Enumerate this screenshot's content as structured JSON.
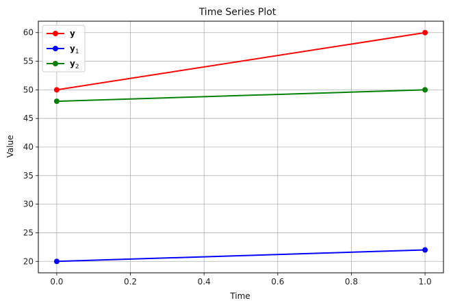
{
  "chart_data": {
    "type": "line",
    "title": "Time Series Plot",
    "xlabel": "Time",
    "ylabel": "Value",
    "xlim": [
      -0.05,
      1.05
    ],
    "ylim": [
      18,
      62
    ],
    "xticks": [
      0.0,
      0.2,
      0.4,
      0.6,
      0.8,
      1.0
    ],
    "xtick_labels": [
      "0.0",
      "0.2",
      "0.4",
      "0.6",
      "0.8",
      "1.0"
    ],
    "yticks": [
      20,
      25,
      30,
      35,
      40,
      45,
      50,
      55,
      60
    ],
    "ytick_labels": [
      "20",
      "25",
      "30",
      "35",
      "40",
      "45",
      "50",
      "55",
      "60"
    ],
    "grid": true,
    "legend_position": "top-left",
    "x": [
      0.0,
      1.0
    ],
    "series": [
      {
        "name": "y",
        "base": "y",
        "sub": "",
        "color": "#ff0000",
        "values": [
          50,
          60
        ]
      },
      {
        "name": "y₁",
        "base": "y",
        "sub": "1",
        "color": "#0000ff",
        "values": [
          20,
          22
        ]
      },
      {
        "name": "y₂",
        "base": "y",
        "sub": "2",
        "color": "#008000",
        "values": [
          48,
          50
        ]
      }
    ]
  }
}
